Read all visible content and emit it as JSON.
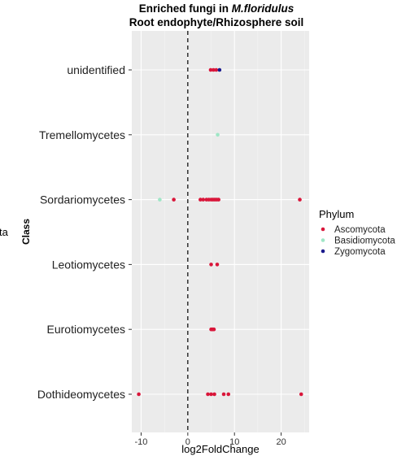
{
  "chart_data": {
    "type": "scatter",
    "title_prefix": "Enriched fungi in ",
    "title_species": "M.floridulus",
    "subtitle": "Root endophyte/Rhizosphere soil",
    "xlabel": "log2FoldChange",
    "ylabel": "Class",
    "ylabel_clipped": "ta",
    "xlim": [
      -12,
      26
    ],
    "xticks": [
      -10,
      0,
      10,
      20
    ],
    "categories": [
      "Dothideomycetes",
      "Eurotiomycetes",
      "Leotiomycetes",
      "Sordariomycetes",
      "Tremellomycetes",
      "unidentified"
    ],
    "zero_line": {
      "x": 0,
      "style": "dashed"
    },
    "grid": true,
    "legend": {
      "title": "Phylum",
      "position": "right",
      "entries": [
        {
          "name": "Ascomycota",
          "color": "#d9163a"
        },
        {
          "name": "Basidiomycota",
          "color": "#9fe6c6"
        },
        {
          "name": "Zygomycota",
          "color": "#1a1a8c"
        }
      ]
    },
    "series": [
      {
        "name": "Ascomycota",
        "color": "#d9163a",
        "points": [
          {
            "x": -10.5,
            "y": "Dothideomycetes"
          },
          {
            "x": 4.3,
            "y": "Dothideomycetes"
          },
          {
            "x": 5.0,
            "y": "Dothideomycetes"
          },
          {
            "x": 5.7,
            "y": "Dothideomycetes"
          },
          {
            "x": 7.7,
            "y": "Dothideomycetes"
          },
          {
            "x": 8.7,
            "y": "Dothideomycetes"
          },
          {
            "x": 24.3,
            "y": "Dothideomycetes"
          },
          {
            "x": 5.0,
            "y": "Eurotiomycetes"
          },
          {
            "x": 5.3,
            "y": "Eurotiomycetes"
          },
          {
            "x": 5.6,
            "y": "Eurotiomycetes"
          },
          {
            "x": 5.0,
            "y": "Leotiomycetes"
          },
          {
            "x": 6.3,
            "y": "Leotiomycetes"
          },
          {
            "x": -3.0,
            "y": "Sordariomycetes"
          },
          {
            "x": 2.7,
            "y": "Sordariomycetes"
          },
          {
            "x": 3.3,
            "y": "Sordariomycetes"
          },
          {
            "x": 4.0,
            "y": "Sordariomycetes"
          },
          {
            "x": 4.5,
            "y": "Sordariomycetes"
          },
          {
            "x": 5.0,
            "y": "Sordariomycetes"
          },
          {
            "x": 5.4,
            "y": "Sordariomycetes"
          },
          {
            "x": 5.8,
            "y": "Sordariomycetes"
          },
          {
            "x": 6.2,
            "y": "Sordariomycetes"
          },
          {
            "x": 6.6,
            "y": "Sordariomycetes"
          },
          {
            "x": 24.0,
            "y": "Sordariomycetes"
          },
          {
            "x": 4.9,
            "y": "unidentified"
          },
          {
            "x": 5.5,
            "y": "unidentified"
          },
          {
            "x": 6.1,
            "y": "unidentified"
          }
        ]
      },
      {
        "name": "Basidiomycota",
        "color": "#9fe6c6",
        "points": [
          {
            "x": -6.0,
            "y": "Sordariomycetes"
          },
          {
            "x": 6.4,
            "y": "Tremellomycetes"
          }
        ]
      },
      {
        "name": "Zygomycota",
        "color": "#1a1a8c",
        "points": [
          {
            "x": 6.8,
            "y": "unidentified"
          }
        ]
      }
    ]
  }
}
